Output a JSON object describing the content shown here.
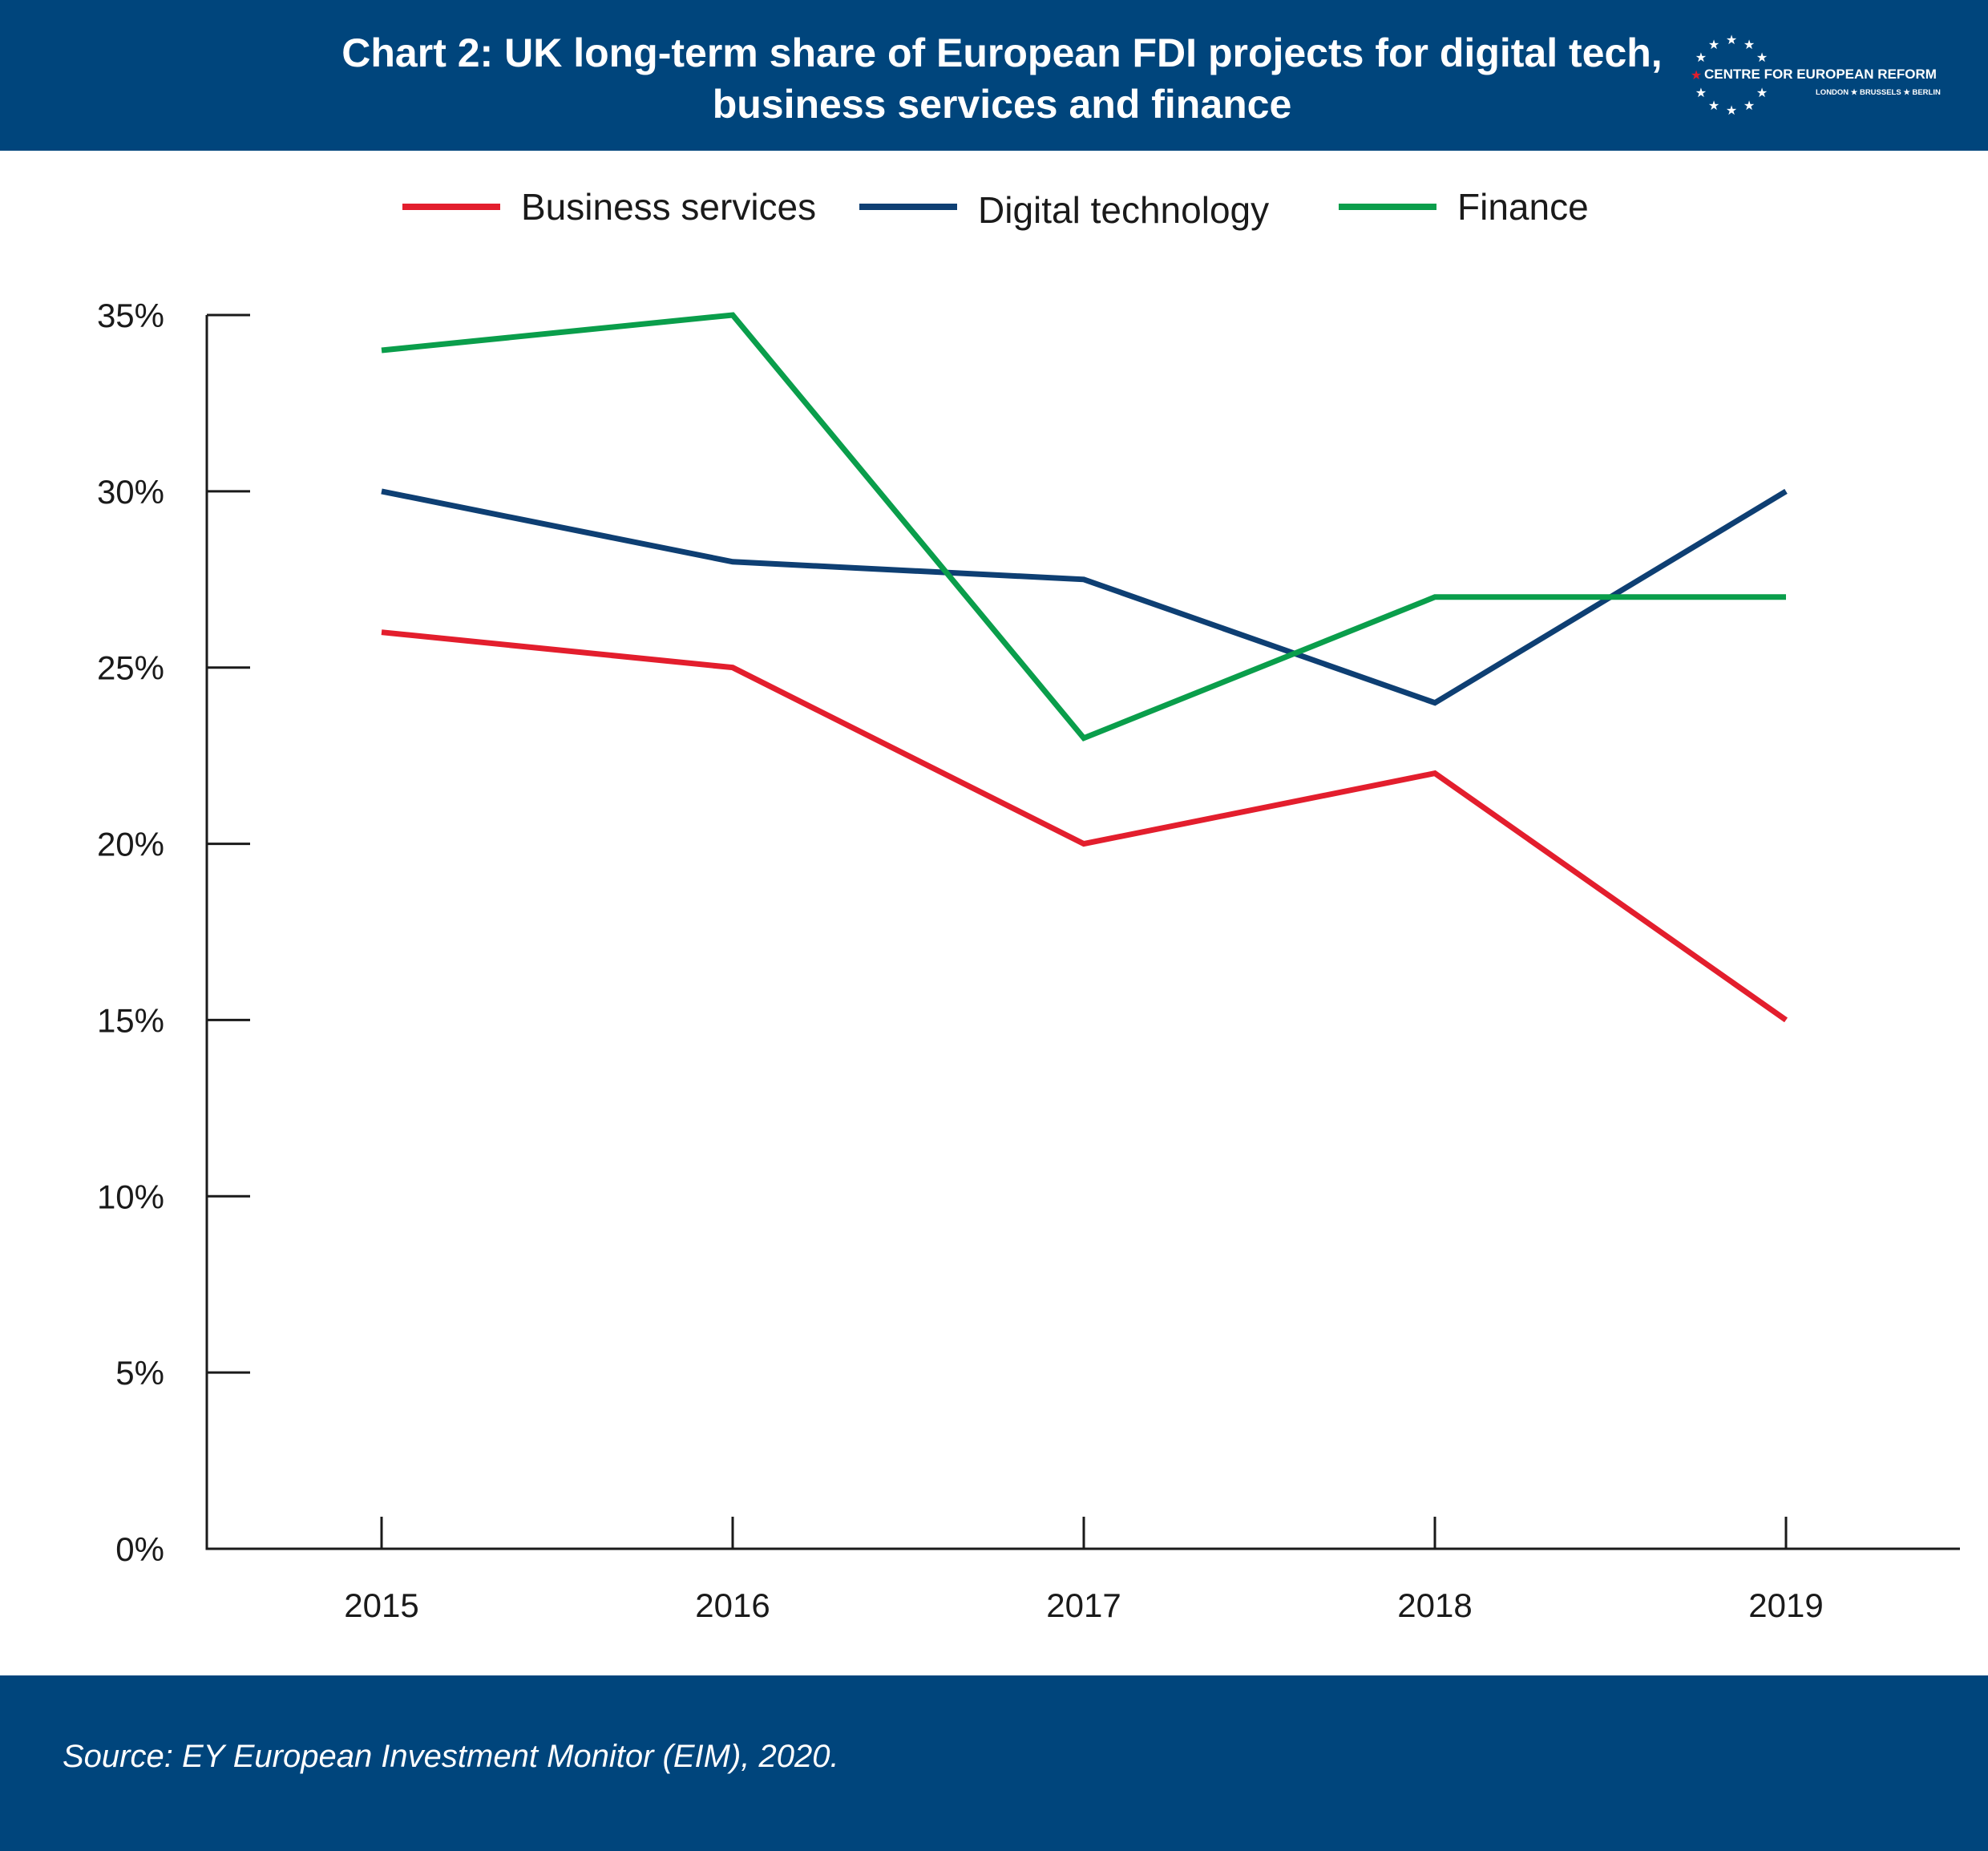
{
  "header": {
    "title_line1": "Chart 2: UK long-term share of European FDI projects for digital tech,",
    "title_line2": "business services and finance"
  },
  "logo": {
    "name": "CENTRE FOR EUROPEAN REFORM",
    "cities": "LONDON ★ BRUSSELS ★ BERLIN",
    "icon": "ring-of-stars-icon"
  },
  "colors": {
    "header_bg": "#00457c",
    "business_services": "#e31e2d",
    "digital_technology": "#0e3f73",
    "finance": "#0a9e4b",
    "axis": "#1a1a1a"
  },
  "chart_data": {
    "type": "line",
    "x": [
      "2015",
      "2016",
      "2017",
      "2018",
      "2019"
    ],
    "series": [
      {
        "name": "Business services",
        "values": [
          26,
          25,
          20,
          22,
          15
        ],
        "color": "#e31e2d"
      },
      {
        "name": "Digital technology",
        "values": [
          30,
          28,
          27.5,
          24,
          30
        ],
        "color": "#0e3f73"
      },
      {
        "name": "Finance",
        "values": [
          34,
          35,
          23,
          27,
          27
        ],
        "color": "#0a9e4b"
      }
    ],
    "y_ticks": [
      0,
      5,
      10,
      15,
      20,
      25,
      30,
      35
    ],
    "y_tick_labels": [
      "0%",
      "5%",
      "10%",
      "15%",
      "20%",
      "25%",
      "30%",
      "35%"
    ],
    "ylim": [
      0,
      35
    ],
    "grid": false,
    "legend_position": "top"
  },
  "footer": {
    "source": "Source: EY European Investment Monitor (EIM), 2020."
  }
}
